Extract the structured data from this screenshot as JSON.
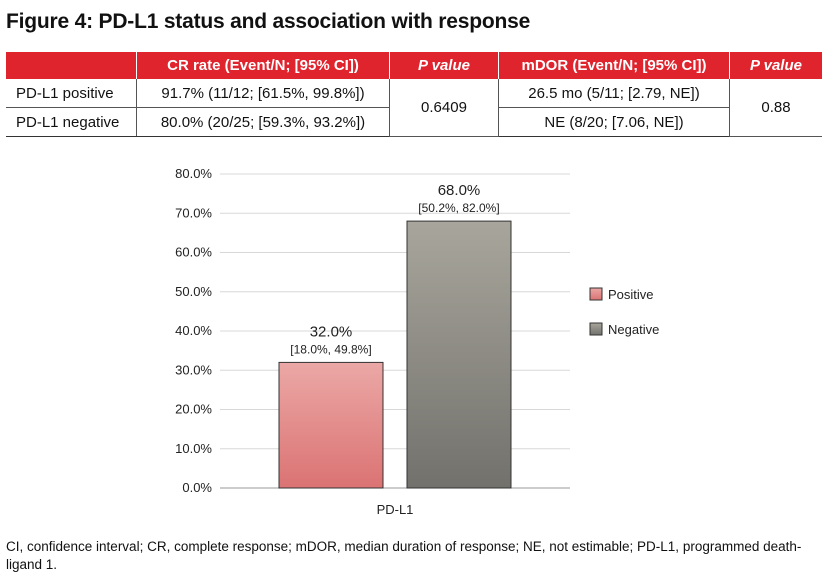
{
  "title": "Figure 4: PD-L1 status and association with response",
  "table": {
    "headers": [
      "",
      "CR rate (Event/N; [95% CI])",
      "P value",
      "mDOR (Event/N; [95% CI])",
      "P value"
    ],
    "rows": [
      {
        "label": "PD-L1 positive",
        "cr": "91.7% (11/12; [61.5%, 99.8%])",
        "mdor": "26.5 mo (5/11; [2.79, NE])"
      },
      {
        "label": "PD-L1 negative",
        "cr": "80.0% (20/25; [59.3%, 93.2%])",
        "mdor": "NE (8/20; [7.06, NE])"
      }
    ],
    "p_cr": "0.6409",
    "p_mdor": "0.88",
    "header_color": "#e0242e"
  },
  "chart_data": {
    "type": "bar",
    "categories": [
      "PD-L1"
    ],
    "series": [
      {
        "name": "Positive",
        "values": [
          32.0
        ],
        "label": "32.0%",
        "ci": "[18.0%, 49.8%]",
        "color": "#e07a7a"
      },
      {
        "name": "Negative",
        "values": [
          68.0
        ],
        "label": "68.0%",
        "ci": "[50.2%, 82.0%]",
        "color": "#888880"
      }
    ],
    "y_ticks": [
      "0.0%",
      "10.0%",
      "20.0%",
      "30.0%",
      "40.0%",
      "50.0%",
      "60.0%",
      "70.0%",
      "80.0%"
    ],
    "ylim": [
      0,
      80
    ],
    "grid": true,
    "legend": "right"
  },
  "footnote": "CI, confidence interval; CR, complete response; mDOR, median duration of response; NE, not estimable; PD-L1, programmed death-ligand 1."
}
